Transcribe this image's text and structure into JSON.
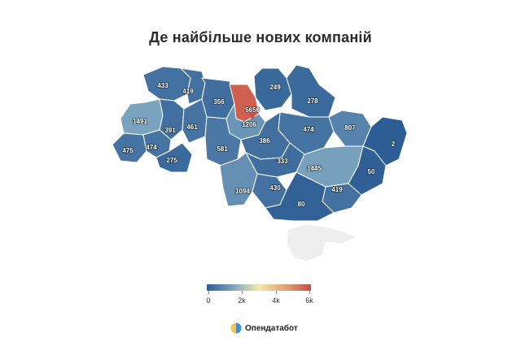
{
  "title": "Де найбільше нових компаній",
  "legend": {
    "ticks": [
      "0",
      "2k",
      "4k",
      "6k"
    ],
    "colors": [
      "#2d5d95",
      "#7aa3bf",
      "#f3eaa8",
      "#e3a475",
      "#c94c45"
    ]
  },
  "brand": {
    "name": "Опендатабот",
    "icon": "opendatabot-logo-icon"
  },
  "chart_data": {
    "type": "choropleth",
    "scale": [
      0,
      6000
    ],
    "regions": [
      {
        "value": 433,
        "label": "433"
      },
      {
        "value": 419,
        "label": "419"
      },
      {
        "value": 356,
        "label": "356"
      },
      {
        "value": 249,
        "label": "249"
      },
      {
        "value": 278,
        "label": "278"
      },
      {
        "value": 1491,
        "label": "1491"
      },
      {
        "value": 391,
        "label": "391"
      },
      {
        "value": 461,
        "label": "461"
      },
      {
        "value": 5656,
        "label": "5656"
      },
      {
        "value": 1206,
        "label": "1206"
      },
      {
        "value": 474,
        "label": "474"
      },
      {
        "value": 807,
        "label": "807"
      },
      {
        "value": 2,
        "label": "2"
      },
      {
        "value": 475,
        "label": "475"
      },
      {
        "value": 474,
        "label": "474"
      },
      {
        "value": 581,
        "label": "581"
      },
      {
        "value": 386,
        "label": "386"
      },
      {
        "value": 275,
        "label": "275"
      },
      {
        "value": 333,
        "label": "333"
      },
      {
        "value": 1445,
        "label": "1445"
      },
      {
        "value": 50,
        "label": "50"
      },
      {
        "value": 1094,
        "label": "1094"
      },
      {
        "value": 430,
        "label": "430"
      },
      {
        "value": 419,
        "label": "419"
      },
      {
        "value": 80,
        "label": "80"
      },
      {
        "value": null,
        "label": ""
      }
    ]
  }
}
